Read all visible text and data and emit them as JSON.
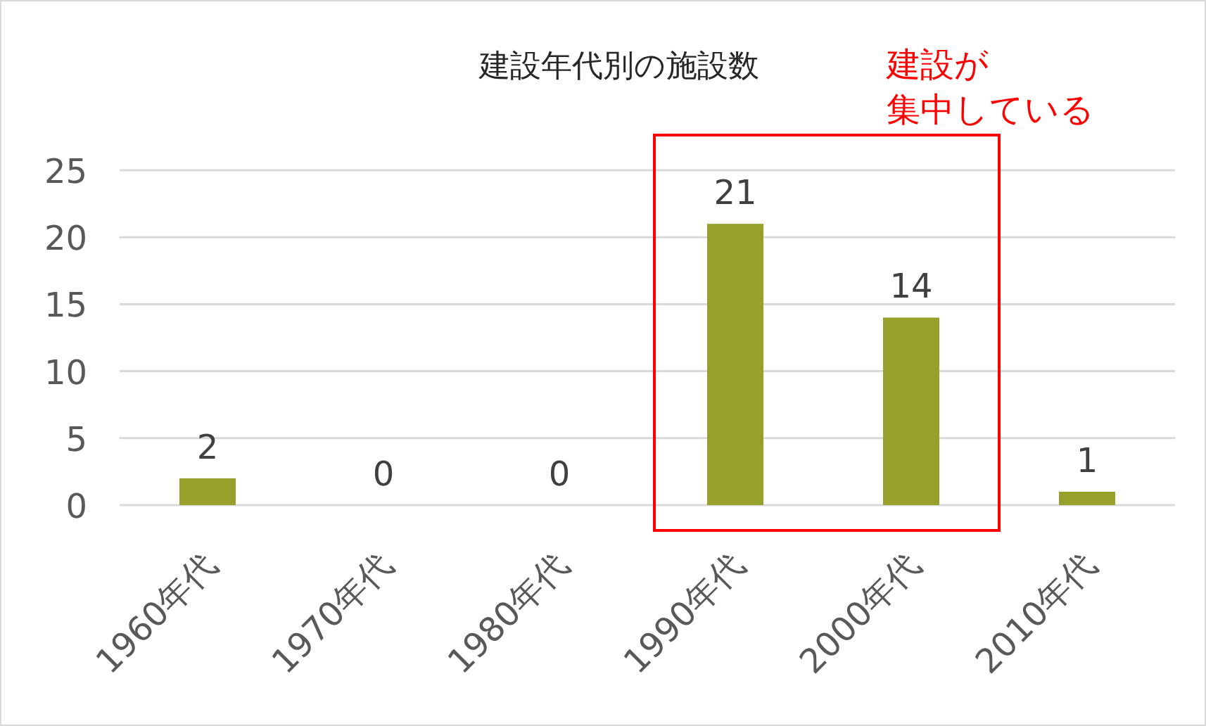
{
  "chart_data": {
    "type": "bar",
    "title": "建設年代別の施設数",
    "categories": [
      "1960年代",
      "1970年代",
      "1980年代",
      "1990年代",
      "2000年代",
      "2010年代"
    ],
    "values": [
      2,
      0,
      0,
      21,
      14,
      1
    ],
    "color": "#97a02a",
    "ylim": [
      0,
      25
    ],
    "yticks": [
      0,
      5,
      10,
      15,
      20,
      25
    ],
    "grid": "y",
    "data_labels": true,
    "annotations": [
      "建設が",
      "集中している"
    ]
  }
}
